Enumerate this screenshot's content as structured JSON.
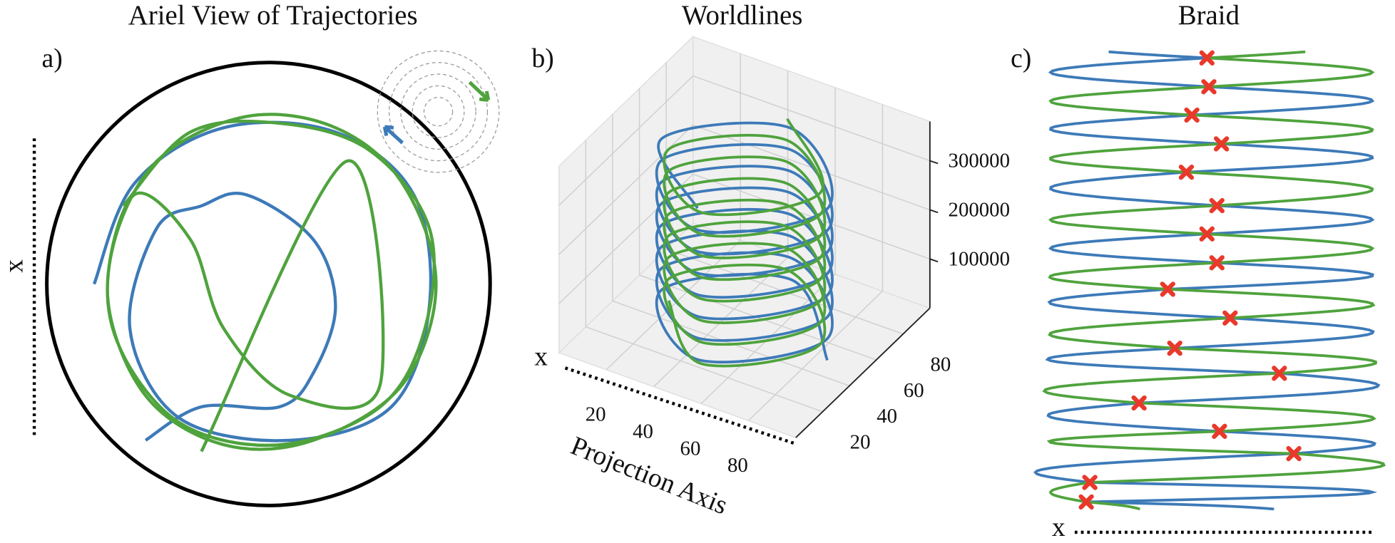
{
  "chart_data": [
    {
      "type": "trajectory",
      "panel": "a)",
      "title": "Ariel View of Trajectories",
      "axis_label": "x",
      "xlim": [
        -1,
        1
      ],
      "ylim": [
        -1,
        1
      ],
      "series": [
        {
          "color": "#3d7ab8",
          "x": [
            -0.78,
            -0.6,
            -0.2,
            0.3,
            0.65,
            0.72,
            0.55,
            0.1,
            -0.4,
            -0.62,
            -0.5,
            -0.3,
            -0.1,
            0.2,
            0.3,
            0.2,
            0.05,
            -0.3,
            -0.55
          ],
          "y": [
            0.0,
            0.45,
            0.7,
            0.68,
            0.4,
            -0.1,
            -0.55,
            -0.7,
            -0.6,
            -0.2,
            0.25,
            0.35,
            0.4,
            0.2,
            -0.1,
            -0.4,
            -0.55,
            -0.55,
            -0.7
          ]
        },
        {
          "color": "#4fa33d",
          "x": [
            -0.65,
            -0.35,
            0.05,
            0.45,
            0.72,
            0.7,
            0.5,
            0.05,
            -0.4,
            -0.68,
            -0.7,
            -0.5,
            -0.1,
            0.3,
            0.6,
            0.75,
            0.6,
            0.2,
            -0.2,
            -0.55,
            -0.72,
            -0.6,
            -0.35,
            -0.2,
            0.1,
            0.5,
            0.35,
            -0.3
          ],
          "y": [
            0.35,
            0.68,
            0.72,
            0.6,
            0.25,
            -0.2,
            -0.55,
            -0.72,
            -0.62,
            -0.25,
            0.15,
            0.55,
            0.75,
            0.7,
            0.45,
            0.0,
            -0.45,
            -0.7,
            -0.72,
            -0.5,
            -0.05,
            0.4,
            0.2,
            -0.2,
            -0.5,
            -0.45,
            0.55,
            -0.75
          ]
        }
      ]
    },
    {
      "type": "line3d",
      "panel": "b)",
      "title": "Worldlines",
      "xlabel": "Projection Axis",
      "axis_label": "x",
      "xlim": [
        0,
        100
      ],
      "ylim": [
        0,
        100
      ],
      "zlim": [
        0,
        380000
      ],
      "xticks": [
        20,
        40,
        60,
        80
      ],
      "yticks": [
        20,
        40,
        60,
        80
      ],
      "zticks": [
        100000,
        200000,
        300000
      ],
      "series": [
        {
          "color": "#3d7ab8",
          "x": [
            85,
            50,
            15,
            50,
            85,
            50,
            15,
            50,
            85,
            50,
            15,
            50,
            85,
            50,
            15,
            50,
            85,
            50,
            15,
            50,
            85,
            50,
            15,
            50,
            85,
            50,
            15,
            50,
            85,
            50,
            15,
            50
          ],
          "y": [
            50,
            85,
            50,
            15,
            50,
            85,
            50,
            15,
            50,
            85,
            50,
            15,
            50,
            85,
            50,
            15,
            50,
            85,
            50,
            15,
            50,
            85,
            50,
            15,
            50,
            85,
            50,
            15,
            50,
            85,
            50,
            15
          ],
          "z": [
            0,
            11000,
            22000,
            33000,
            44000,
            55000,
            66000,
            77000,
            88000,
            99000,
            110000,
            121000,
            132000,
            143000,
            154000,
            165000,
            176000,
            187000,
            198000,
            209000,
            220000,
            231000,
            242000,
            253000,
            264000,
            275000,
            286000,
            297000,
            308000,
            319000,
            330000,
            341000
          ]
        },
        {
          "color": "#4fa33d",
          "x": [
            18,
            50,
            82,
            50,
            18,
            50,
            82,
            50,
            18,
            50,
            82,
            50,
            18,
            50,
            82,
            50,
            18,
            50,
            82,
            50,
            18,
            50,
            82,
            50,
            18,
            50,
            82,
            50,
            18,
            50,
            82,
            50
          ],
          "y": [
            50,
            18,
            50,
            82,
            50,
            18,
            50,
            82,
            50,
            18,
            50,
            82,
            50,
            18,
            50,
            82,
            50,
            18,
            50,
            82,
            50,
            18,
            50,
            82,
            50,
            18,
            50,
            82,
            50,
            18,
            50,
            82
          ],
          "z": [
            5500,
            16500,
            27500,
            38500,
            49500,
            60500,
            71500,
            82500,
            93500,
            104500,
            115500,
            126500,
            137500,
            148500,
            159500,
            170500,
            181500,
            192500,
            203500,
            214500,
            225500,
            236500,
            247500,
            258500,
            269500,
            280500,
            291500,
            302500,
            313500,
            324500,
            335500,
            346500
          ]
        }
      ]
    },
    {
      "type": "braid",
      "panel": "c)",
      "title": "Braid",
      "axis_label": "x",
      "xlim": [
        0,
        1
      ],
      "ylim": [
        0,
        1
      ],
      "strand_colors": [
        "#3d7ab8",
        "#4fa33d"
      ],
      "marker_color": "#e8392b",
      "crossings": {
        "x": [
          0.486,
          0.492,
          0.439,
          0.531,
          0.422,
          0.517,
          0.486,
          0.517,
          0.364,
          0.558,
          0.386,
          0.711,
          0.275,
          0.525,
          0.756,
          0.122,
          0.111
        ],
        "y": [
          0.981,
          0.919,
          0.858,
          0.796,
          0.735,
          0.663,
          0.602,
          0.54,
          0.483,
          0.421,
          0.356,
          0.302,
          0.238,
          0.177,
          0.129,
          0.067,
          0.025
        ]
      }
    }
  ]
}
